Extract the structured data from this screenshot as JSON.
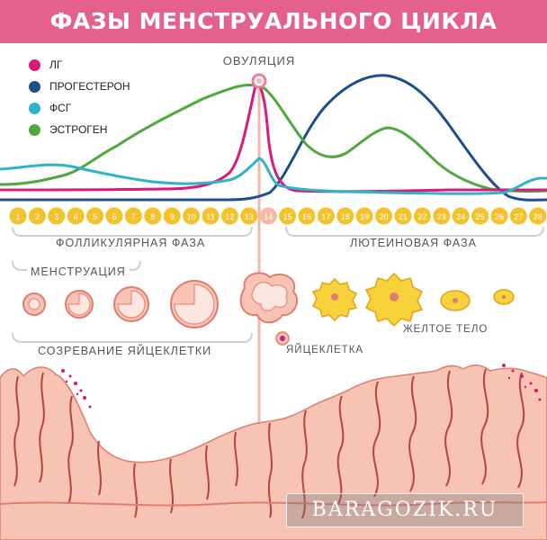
{
  "header": {
    "title": "ФАЗЫ МЕНСТРУАЛЬНОГО ЦИКЛА",
    "color": "#e4618c"
  },
  "legend": [
    {
      "label": "ЛГ",
      "color": "#d81b7a"
    },
    {
      "label": "ПРОГЕСТЕРОН",
      "color": "#1f4e8c"
    },
    {
      "label": "ФСГ",
      "color": "#2fb3c8"
    },
    {
      "label": "ЭСТРОГЕН",
      "color": "#4ea83c"
    }
  ],
  "ovulation_label": "ОВУЛЯЦИЯ",
  "days": [
    "1",
    "2",
    "3",
    "4",
    "5",
    "6",
    "7",
    "8",
    "9",
    "10",
    "11",
    "12",
    "13",
    "14",
    "15",
    "16",
    "17",
    "18",
    "19",
    "20",
    "21",
    "22",
    "23",
    "24",
    "25",
    "26",
    "27",
    "28"
  ],
  "colors": {
    "day_circle": "#f4c22b",
    "ovulation_circle": "#f5b9a6",
    "tissue": "#f6c3b5",
    "tissue_dark": "#e07d6e",
    "yellow_body": "#f7d23a"
  },
  "phases": {
    "follicular": "ФОЛЛИКУЛЯРНАЯ ФАЗА",
    "luteal": "ЛЮТЕИНОВАЯ ФАЗА",
    "menstruation": "МЕНСТРУАЦИЯ",
    "maturation": "СОЗРЕВАНИЕ ЯЙЦЕКЛЕТКИ"
  },
  "labels": {
    "egg": "ЯЙЦЕКЛЕТКА",
    "corpus_luteum": "ЖЕЛТОЕ ТЕЛО"
  },
  "watermark": "BARAGOZIK.RU"
}
